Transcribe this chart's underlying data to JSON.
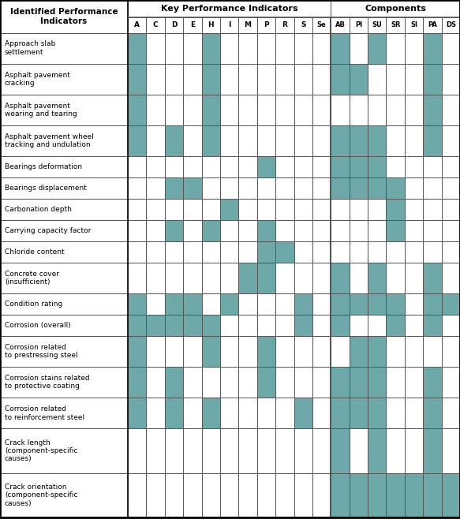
{
  "title_col": "Identified Performance\nIndicators",
  "kpi_header": "Key Performance Indicators",
  "comp_header": "Components",
  "kpi_cols": [
    "A",
    "C",
    "D",
    "E",
    "H",
    "I",
    "M",
    "P",
    "R",
    "S",
    "Se"
  ],
  "comp_cols": [
    "AB",
    "PI",
    "SU",
    "SR",
    "SI",
    "PA",
    "DS"
  ],
  "rows": [
    "Approach slab\nsettlement",
    "Asphalt pavement\ncracking",
    "Asphalt pavement\nwearing and tearing",
    "Asphalt pavement wheel\ntracking and undulation",
    "Bearings deformation",
    "Bearings displacement",
    "Carbonation depth",
    "Carrying capacity factor",
    "Chloride content",
    "Concrete cover\n(insufficient)",
    "Condition rating",
    "Corrosion (overall)",
    "Corrosion related\nto prestressing steel",
    "Corrosion stains related\nto protective coating",
    "Corrosion related\nto reinforcement steel",
    "Crack length\n(component-specific\ncauses)",
    "Crack orientation\n(component-specific\ncauses)"
  ],
  "colored_cells_by_row": {
    "0": [
      0,
      4,
      11,
      13,
      16
    ],
    "1": [
      0,
      4,
      11,
      12,
      16
    ],
    "2": [
      0,
      4,
      16
    ],
    "3": [
      0,
      2,
      4,
      11,
      12,
      13,
      16
    ],
    "4": [
      7,
      11,
      12,
      13
    ],
    "5": [
      2,
      3,
      11,
      12,
      13,
      14
    ],
    "6": [
      5,
      14
    ],
    "7": [
      2,
      4,
      7,
      14
    ],
    "8": [
      7,
      8
    ],
    "9": [
      6,
      7,
      11,
      13,
      16
    ],
    "10": [
      0,
      2,
      3,
      5,
      9,
      11,
      12,
      13,
      14,
      16,
      17
    ],
    "11": [
      0,
      1,
      2,
      3,
      4,
      9,
      11,
      14,
      16
    ],
    "12": [
      0,
      4,
      7,
      12,
      13
    ],
    "13": [
      0,
      2,
      7,
      11,
      12,
      13,
      16
    ],
    "14": [
      0,
      2,
      4,
      9,
      11,
      12,
      13,
      16
    ],
    "15": [
      11,
      13,
      16
    ],
    "16": [
      11,
      12,
      13,
      14,
      15,
      16,
      17
    ]
  },
  "fill_color": "#6fa8a8",
  "bg_color": "#ffffff",
  "grid_color": "#555555",
  "text_color": "#000000",
  "header_text_color": "#000000",
  "row_line_heights": [
    2,
    2,
    2,
    2,
    1,
    1,
    1,
    1,
    1,
    2,
    1,
    1,
    2,
    2,
    2,
    3,
    3
  ]
}
